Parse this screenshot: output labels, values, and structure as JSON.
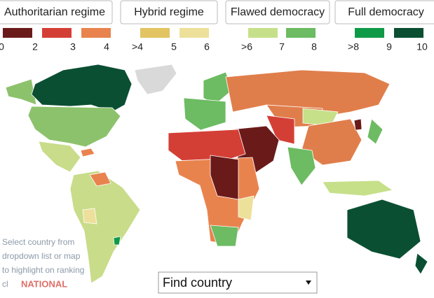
{
  "tabs": [
    "Authoritarian regime",
    "Hybrid regime",
    "Flawed democracy",
    "Full democracy"
  ],
  "legend": {
    "swatches": [
      {
        "color": "#6b1a1a"
      },
      {
        "color": "#d43f35"
      },
      {
        "color": "#e9834e"
      },
      {
        "color": "#e2c462"
      },
      {
        "color": "#ede09a"
      },
      {
        "color": "#c6e08a"
      },
      {
        "color": "#6dbb62"
      },
      {
        "color": "#0f9a48"
      },
      {
        "color": "#0b4f33"
      }
    ],
    "labels": [
      "0",
      "2",
      "3",
      "4",
      ">4",
      "5",
      "6",
      ">6",
      "7",
      "8",
      ">8",
      "9",
      "10"
    ]
  },
  "note": [
    "Select country from",
    "dropdown list or map",
    "to highlight on ranking",
    "cl"
  ],
  "dropdown": {
    "label": "Find country"
  },
  "watermark": "NATIONAL"
}
